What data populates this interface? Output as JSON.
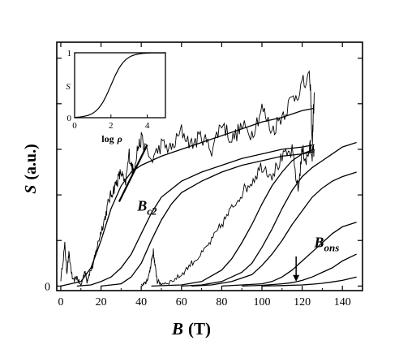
{
  "chart_data": {
    "type": "line",
    "xlabel": "B (T)",
    "xlabel_main": "B",
    "xlabel_unit": "(T)",
    "ylabel": "S (a.u.)",
    "ylabel_main": "S",
    "ylabel_unit": "(a.u.)",
    "xlim": [
      -2,
      150
    ],
    "ylim": [
      -0.02,
      1.07
    ],
    "x_ticks": [
      0,
      20,
      40,
      60,
      80,
      100,
      120,
      140
    ],
    "y_ticks_labeled": [
      {
        "value": 0,
        "label": "0"
      }
    ],
    "grid": false,
    "annotations": [
      {
        "text_main": "B",
        "text_sub": "c2",
        "x": 38,
        "y": 0.33
      },
      {
        "text_main": "B",
        "text_sub": "ons",
        "x": 126,
        "y": 0.17
      }
    ],
    "arrow": {
      "from": [
        117,
        0.13
      ],
      "to": [
        117,
        0.02
      ]
    },
    "bc2_tangent": {
      "x": [
        29,
        43
      ],
      "y": [
        0.37,
        0.62
      ]
    },
    "smooth_curves": [
      {
        "x": [
          0,
          10,
          15,
          20,
          25,
          30,
          35,
          40,
          50,
          60,
          70,
          80,
          90,
          100,
          110,
          120,
          126
        ],
        "y": [
          0.0,
          0.02,
          0.08,
          0.2,
          0.34,
          0.44,
          0.5,
          0.53,
          0.57,
          0.6,
          0.63,
          0.66,
          0.69,
          0.72,
          0.74,
          0.77,
          0.78
        ]
      },
      {
        "x": [
          8,
          15,
          20,
          25,
          30,
          35,
          40,
          45,
          50,
          60,
          70,
          80,
          90,
          100,
          110,
          120,
          126
        ],
        "y": [
          0.0,
          0.005,
          0.02,
          0.04,
          0.08,
          0.14,
          0.23,
          0.32,
          0.39,
          0.46,
          0.5,
          0.53,
          0.56,
          0.58,
          0.6,
          0.61,
          0.62
        ]
      },
      {
        "x": [
          20,
          30,
          35,
          40,
          45,
          50,
          55,
          60,
          70,
          80,
          90,
          100,
          110,
          120,
          126
        ],
        "y": [
          0.0,
          0.01,
          0.04,
          0.1,
          0.2,
          0.29,
          0.36,
          0.41,
          0.46,
          0.5,
          0.53,
          0.55,
          0.57,
          0.58,
          0.59
        ]
      },
      {
        "x": [
          45,
          60,
          70,
          80,
          85,
          90,
          95,
          100,
          105,
          110,
          115,
          120,
          126
        ],
        "y": [
          0.0,
          0.005,
          0.02,
          0.07,
          0.12,
          0.19,
          0.27,
          0.36,
          0.44,
          0.5,
          0.55,
          0.58,
          0.6
        ]
      },
      {
        "x": [
          60,
          70,
          80,
          90,
          95,
          100,
          105,
          110,
          115,
          120,
          125,
          130,
          135,
          140,
          147
        ],
        "y": [
          0.0,
          0.005,
          0.02,
          0.06,
          0.1,
          0.17,
          0.25,
          0.34,
          0.42,
          0.48,
          0.52,
          0.55,
          0.58,
          0.61,
          0.63
        ]
      },
      {
        "x": [
          65,
          75,
          85,
          95,
          100,
          105,
          110,
          115,
          120,
          125,
          130,
          135,
          140,
          147
        ],
        "y": [
          0.0,
          0.005,
          0.02,
          0.05,
          0.09,
          0.14,
          0.2,
          0.27,
          0.33,
          0.39,
          0.43,
          0.46,
          0.48,
          0.5
        ]
      },
      {
        "x": [
          80,
          90,
          100,
          105,
          110,
          115,
          120,
          125,
          130,
          135,
          140,
          147
        ],
        "y": [
          0.0,
          0.005,
          0.01,
          0.02,
          0.04,
          0.07,
          0.11,
          0.15,
          0.19,
          0.23,
          0.26,
          0.28
        ]
      },
      {
        "x": [
          90,
          100,
          110,
          115,
          120,
          125,
          130,
          135,
          140,
          147
        ],
        "y": [
          0.0,
          0.003,
          0.01,
          0.015,
          0.025,
          0.04,
          0.06,
          0.08,
          0.11,
          0.14
        ]
      },
      {
        "x": [
          100,
          110,
          120,
          125,
          130,
          135,
          140,
          147
        ],
        "y": [
          0.0,
          0.002,
          0.005,
          0.008,
          0.012,
          0.018,
          0.025,
          0.04
        ]
      }
    ],
    "noisy_traces": [
      {
        "x": [
          0,
          2,
          3,
          4,
          6,
          8,
          10,
          12,
          13,
          14,
          16,
          18,
          20,
          22,
          24,
          26,
          28,
          30,
          32,
          34,
          36,
          38,
          40,
          45,
          50,
          55,
          60,
          65,
          70,
          75,
          80,
          85,
          90,
          95,
          100,
          105,
          110,
          115,
          120,
          124,
          125,
          126
        ],
        "y": [
          0.03,
          0.18,
          0.06,
          0.14,
          0.02,
          0.04,
          0.0,
          0.07,
          0.02,
          0.05,
          0.09,
          0.17,
          0.24,
          0.3,
          0.38,
          0.42,
          0.46,
          0.5,
          0.44,
          0.58,
          0.5,
          0.6,
          0.64,
          0.55,
          0.62,
          0.6,
          0.68,
          0.62,
          0.66,
          0.6,
          0.72,
          0.64,
          0.7,
          0.67,
          0.78,
          0.68,
          0.75,
          0.82,
          0.88,
          0.9,
          0.62,
          0.85
        ]
      },
      {
        "x": [
          40,
          42,
          44,
          45,
          46,
          47,
          48,
          50,
          55,
          60,
          65,
          70,
          75,
          80,
          85,
          90,
          95,
          100,
          105,
          110,
          115,
          118,
          120,
          122,
          124,
          125,
          126
        ],
        "y": [
          0.0,
          0.01,
          0.05,
          0.11,
          0.15,
          0.08,
          0.02,
          0.01,
          0.02,
          0.05,
          0.1,
          0.14,
          0.2,
          0.27,
          0.34,
          0.41,
          0.46,
          0.53,
          0.49,
          0.56,
          0.59,
          0.42,
          0.6,
          0.55,
          0.61,
          0.58,
          0.6
        ]
      }
    ],
    "inset": {
      "xlabel": "log ρ",
      "xlabel_main": "log",
      "xlabel_rho": "ρ",
      "ylabel": "S",
      "xlim": [
        0,
        5
      ],
      "ylim": [
        0,
        1
      ],
      "x_ticks": [
        0,
        2,
        4
      ],
      "y_ticks": [
        0,
        1
      ],
      "curve_midpoint": 2,
      "curve_slope": 2.6
    }
  }
}
